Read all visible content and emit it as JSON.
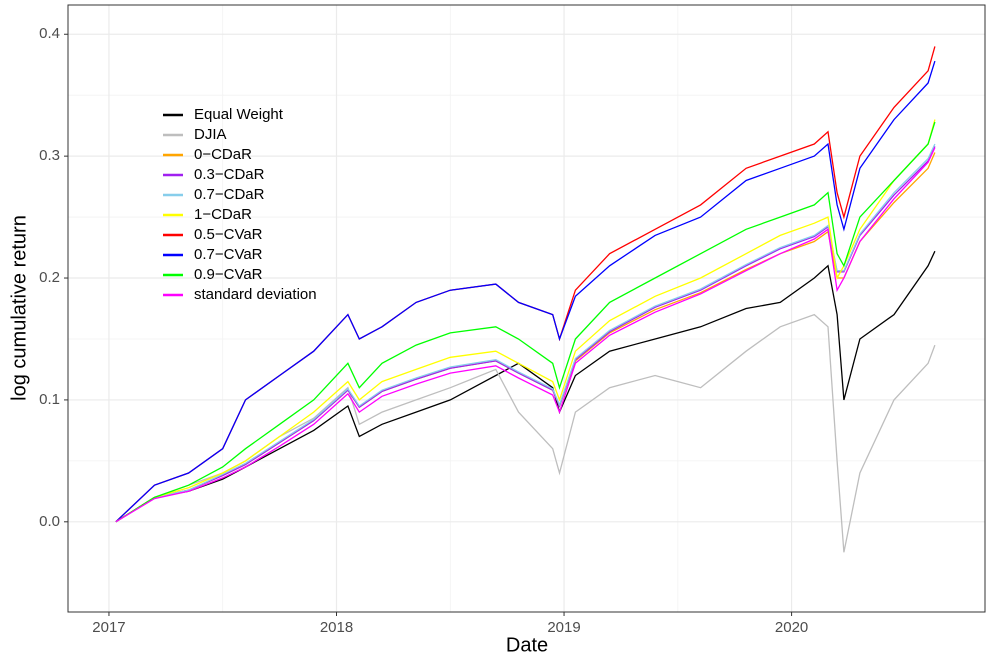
{
  "chart_data": {
    "type": "line",
    "x_label": "Date",
    "y_label": "log cumulative return",
    "x": [
      2017.03,
      2017.2,
      2017.35,
      2017.5,
      2017.6,
      2017.75,
      2017.9,
      2018.05,
      2018.1,
      2018.2,
      2018.35,
      2018.5,
      2018.7,
      2018.8,
      2018.95,
      2018.98,
      2019.05,
      2019.2,
      2019.4,
      2019.6,
      2019.8,
      2019.95,
      2020.1,
      2020.16,
      2020.2,
      2020.23,
      2020.3,
      2020.45,
      2020.6,
      2020.63
    ],
    "series": [
      {
        "name": "Equal Weight",
        "color": "#000000",
        "values": [
          0,
          0.02,
          0.025,
          0.035,
          0.045,
          0.06,
          0.075,
          0.095,
          0.07,
          0.08,
          0.09,
          0.1,
          0.12,
          0.13,
          0.11,
          0.09,
          0.12,
          0.14,
          0.15,
          0.16,
          0.175,
          0.18,
          0.2,
          0.21,
          0.17,
          0.1,
          0.15,
          0.17,
          0.21,
          0.222
        ]
      },
      {
        "name": "DJIA",
        "color": "#bebebe",
        "values": [
          0,
          0.02,
          0.03,
          0.04,
          0.05,
          0.07,
          0.085,
          0.11,
          0.08,
          0.09,
          0.1,
          0.11,
          0.125,
          0.09,
          0.06,
          0.04,
          0.09,
          0.11,
          0.12,
          0.11,
          0.14,
          0.16,
          0.17,
          0.16,
          0.05,
          -0.025,
          0.04,
          0.1,
          0.13,
          0.145
        ]
      },
      {
        "name": "0−CDaR",
        "color": "#ffa500",
        "values": [
          0,
          0.02,
          0.026,
          0.038,
          0.047,
          0.065,
          0.083,
          0.108,
          0.094,
          0.107,
          0.117,
          0.126,
          0.132,
          0.122,
          0.108,
          0.095,
          0.132,
          0.155,
          0.174,
          0.188,
          0.207,
          0.22,
          0.23,
          0.238,
          0.2,
          0.2,
          0.23,
          0.262,
          0.29,
          0.303
        ]
      },
      {
        "name": "0.3−CDaR",
        "color": "#a020f0",
        "values": [
          0,
          0.02,
          0.026,
          0.038,
          0.047,
          0.065,
          0.083,
          0.108,
          0.094,
          0.107,
          0.117,
          0.126,
          0.132,
          0.122,
          0.108,
          0.095,
          0.133,
          0.156,
          0.176,
          0.19,
          0.21,
          0.224,
          0.234,
          0.242,
          0.205,
          0.205,
          0.235,
          0.268,
          0.296,
          0.308
        ]
      },
      {
        "name": "0.7−CDaR",
        "color": "#87ceeb",
        "values": [
          0,
          0.02,
          0.026,
          0.039,
          0.048,
          0.066,
          0.084,
          0.109,
          0.095,
          0.108,
          0.118,
          0.127,
          0.133,
          0.123,
          0.109,
          0.096,
          0.134,
          0.157,
          0.177,
          0.191,
          0.211,
          0.225,
          0.235,
          0.243,
          0.206,
          0.206,
          0.236,
          0.27,
          0.298,
          0.31
        ]
      },
      {
        "name": "1−CDaR",
        "color": "#ffff00",
        "values": [
          0,
          0.02,
          0.028,
          0.04,
          0.05,
          0.07,
          0.09,
          0.115,
          0.1,
          0.115,
          0.125,
          0.135,
          0.14,
          0.13,
          0.115,
          0.1,
          0.14,
          0.165,
          0.185,
          0.2,
          0.22,
          0.235,
          0.245,
          0.25,
          0.2,
          0.21,
          0.24,
          0.28,
          0.31,
          0.33
        ]
      },
      {
        "name": "0.5−CVaR",
        "color": "#ff0000",
        "values": [
          0,
          0.03,
          0.04,
          0.06,
          0.1,
          0.12,
          0.14,
          0.17,
          0.15,
          0.16,
          0.18,
          0.19,
          0.195,
          0.18,
          0.17,
          0.15,
          0.19,
          0.22,
          0.24,
          0.26,
          0.29,
          0.3,
          0.31,
          0.32,
          0.27,
          0.25,
          0.3,
          0.34,
          0.37,
          0.39
        ]
      },
      {
        "name": "0.7−CVaR",
        "color": "#0000ff",
        "values": [
          0,
          0.03,
          0.04,
          0.06,
          0.1,
          0.12,
          0.14,
          0.17,
          0.15,
          0.16,
          0.18,
          0.19,
          0.195,
          0.18,
          0.17,
          0.15,
          0.185,
          0.21,
          0.235,
          0.25,
          0.28,
          0.29,
          0.3,
          0.31,
          0.26,
          0.24,
          0.29,
          0.33,
          0.36,
          0.378
        ]
      },
      {
        "name": "0.9−CVaR",
        "color": "#00ff00",
        "values": [
          0,
          0.02,
          0.03,
          0.045,
          0.06,
          0.08,
          0.1,
          0.13,
          0.11,
          0.13,
          0.145,
          0.155,
          0.16,
          0.15,
          0.13,
          0.11,
          0.15,
          0.18,
          0.2,
          0.22,
          0.24,
          0.25,
          0.26,
          0.27,
          0.22,
          0.21,
          0.25,
          0.28,
          0.31,
          0.328
        ]
      },
      {
        "name": "standard deviation",
        "color": "#ff00ff",
        "values": [
          0,
          0.019,
          0.025,
          0.036,
          0.045,
          0.062,
          0.08,
          0.105,
          0.09,
          0.103,
          0.113,
          0.122,
          0.128,
          0.118,
          0.104,
          0.09,
          0.13,
          0.153,
          0.172,
          0.187,
          0.206,
          0.22,
          0.232,
          0.24,
          0.19,
          0.2,
          0.23,
          0.265,
          0.295,
          0.307
        ]
      }
    ],
    "xlim": [
      2016.82,
      2020.85
    ],
    "xticks": [
      2017,
      2018,
      2019,
      2020
    ],
    "ylim": [
      -0.074,
      0.424
    ],
    "yticks": [
      0.0,
      0.1,
      0.2,
      0.3,
      0.4
    ],
    "grid": true,
    "legend": "top-left"
  }
}
